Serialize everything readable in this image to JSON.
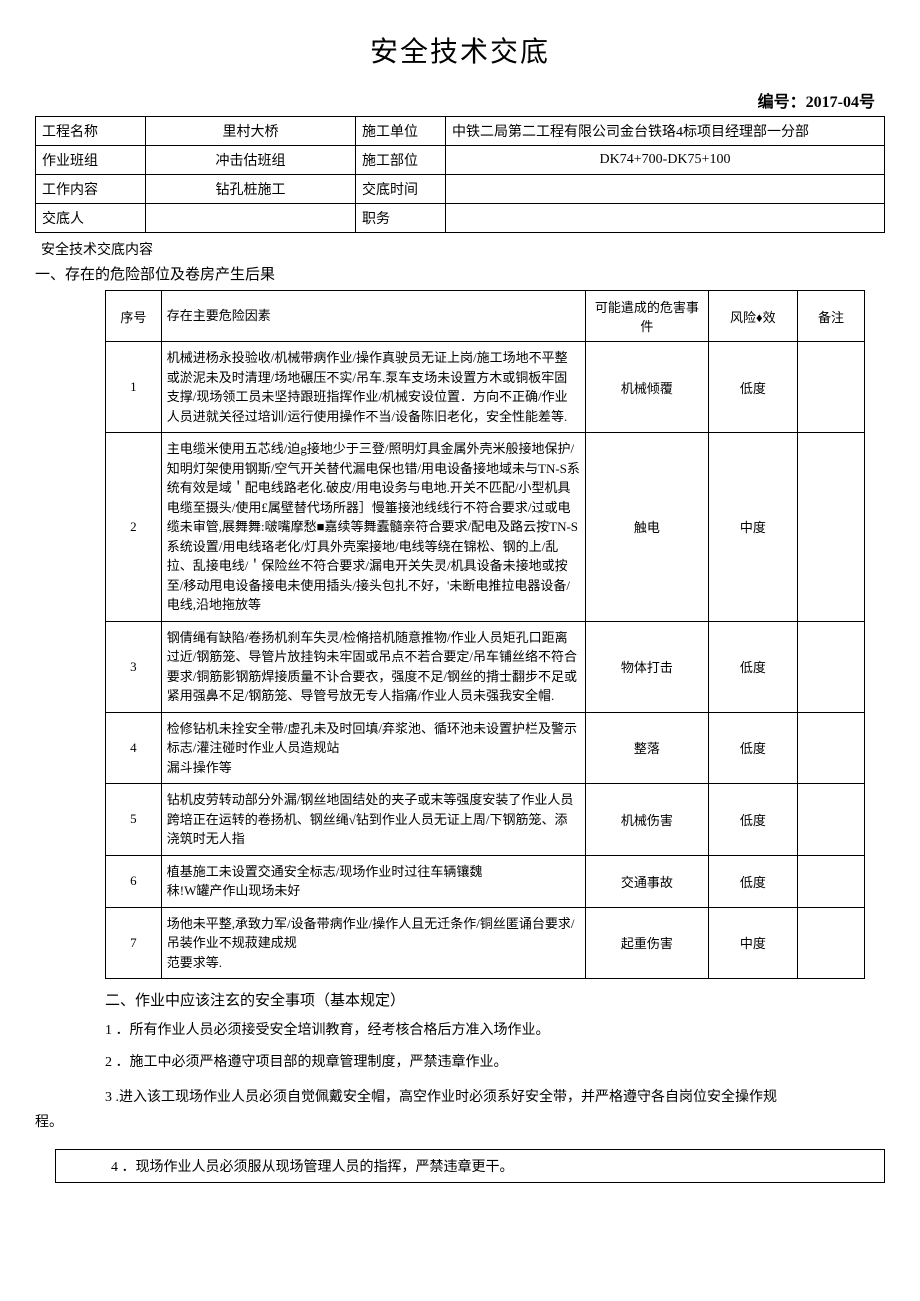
{
  "title": "安全技术交底",
  "doc_number": "编号：2017-04号",
  "header": {
    "rows": [
      {
        "label1": "工程名称",
        "val1": "里村大桥",
        "label2": "施工单位",
        "val2": "中铁二局第二工程有限公司金台铁珞4标项目经理部一分部"
      },
      {
        "label1": "作业班组",
        "val1": "冲击估班组",
        "label2": "施工部位",
        "val2": "DK74+700-DK75+100"
      },
      {
        "label1": "工作内容",
        "val1": "钻孔桩施工",
        "label2": "交底时间",
        "val2": ""
      },
      {
        "label1": "交底人",
        "val1": "",
        "label2": "职务",
        "val2": ""
      }
    ]
  },
  "content_label": "安全技术交底内容",
  "section1_heading": "一、存在的危险部位及卷房产生后果",
  "risk_table": {
    "headers": {
      "num": "序号",
      "factor": "存在主要危险因素",
      "event": "可能遣成的危害事件",
      "risk": "风险♦效",
      "note": "备注"
    },
    "rows": [
      {
        "num": "1",
        "factor": "机械进杨永投验收/机械带病作业/操作真驶员无证上岗/施工场地不平整或淤泥未及时清理/场地碾压不实/吊车.泵车支场未设置方木或铜板牢固支撑/现场领工员未坚持跟班指挥作业/机械安设位置．方向不正确/作业人员进就关径过培训/运行使用操作不当/设备陈旧老化，安全性能差等.",
        "event": "机械倾覆",
        "risk": "低度",
        "note": ""
      },
      {
        "num": "2",
        "factor": "主电缆米使用五芯线/迫g接地少于三登/照明灯具金属外壳米般接地保护/知明灯架使用钢斯/空气开关替代漏电保也错/用电设备接地域未与TN-S系统有效是域＇配电线路老化.破皮/用电设务与电地.开关不匹配/小型机具电缆至摄头/使用£属壁替代场所器］慢箠接池线线行不符合要求/过或电缆未审管,展舞舞:啵嘴摩愁■嘉续等舞蠹髓亲符合要求/配电及路云按TN-S系统设置/用电线珞老化/灯具外壳案接地/电线等绕在锦松、钢的上/乱拉、乱接电线/＇保险丝不符合要求/漏电开关失灵/机具设备未接地或按至/移动甩电设备接电未使用插头/接头包扎不好，'未断电推拉电器设备/电线,沿地拖放等",
        "event": "触电",
        "risk": "中度",
        "note": ""
      },
      {
        "num": "3",
        "factor": "钢倩绳有缺陷/卷扬机刹车失灵/检脩掊机随意推物/作业人员矩孔口距离过近/钢筋笼、导管片放挂钩未牢固或吊点不若合要定/吊车铺丝络不符合要求/铜筋影钢筋焊接质量不讣合要衣，强度不足/钢丝的揹士翻步不足或紧用强鼻不足/钢筋笼、导管号放无专人指痛/作业人员未强我安全帽.",
        "event": "物体打击",
        "risk": "低度",
        "note": ""
      },
      {
        "num": "4",
        "factor": "检修钻机未拴安全带/虚孔未及时回填/弃浆池、循环池未设置护栏及警示标志/灌注碰时作业人员造规站\n漏斗操作等",
        "event": "整落",
        "risk": "低度",
        "note": ""
      },
      {
        "num": "5",
        "factor": "钻机皮劳转动部分外漏/钢丝地固结处的夹子或末等强度安装了作业人员跨培正在运转的卷扬机、钢丝绳√钻到作业人员无证上周/下钢筋笼、添浇筑时无人指",
        "event": "机械伤害",
        "risk": "低度",
        "note": ""
      },
      {
        "num": "6",
        "factor": "植基施工未设置交通安全标志/现场作业时过往车辆镶魏\n秣!W罐产作山现场未好",
        "event": "交通事故",
        "risk": "低度",
        "note": ""
      },
      {
        "num": "7",
        "factor": "场他未平整,承致力军/设备带病作业/操作人且无迁条作/铜丝匿诵台要求/吊装作业不规菽建成规\n范要求等.",
        "event": "起重伤害",
        "risk": "中度",
        "note": ""
      }
    ]
  },
  "section2_heading": "二、作业中应该注玄的安全事项（基本规定）",
  "rules": [
    "1 ．所有作业人员必须接受安全培训教育，经考核合格后方准入场作业。",
    "2 ．施工中必须严格遵守项目部的规章管理制度，严禁违章作业。"
  ],
  "rule3_line1": "3 .进入该工现场作业人员必须自觉佩戴安全帽，高空作业时必须系好安全带，并严格遵守各自岗位安全操作规",
  "rule3_line2": "程。",
  "boxed_rule": "4 ．现场作业人员必须服从现场管理人员的指挥，严禁违章更干。"
}
